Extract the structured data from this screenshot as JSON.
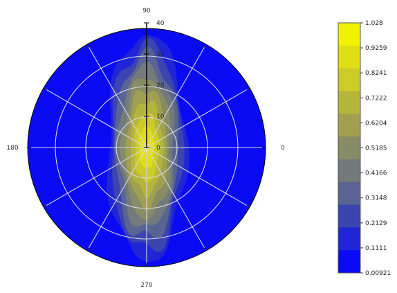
{
  "chart_data": {
    "type": "heatmap",
    "subtype": "polar-contour",
    "angle_labels": [
      "90",
      "180",
      "0",
      "270"
    ],
    "radial_ticks": [
      0,
      10,
      20,
      30,
      40
    ],
    "radial_tick_labels": [
      "0",
      "10",
      "20",
      "30",
      "40"
    ],
    "r_range": [
      0,
      40
    ],
    "angular_grid_step_deg": 30,
    "grid": true,
    "colorbar": {
      "position": "right",
      "min": 0.00921,
      "max": 1.028,
      "tick_labels": [
        "1.028",
        "0.9259",
        "0.8241",
        "0.7222",
        "0.6204",
        "0.5185",
        "0.4166",
        "0.3148",
        "0.2129",
        "0.1111",
        "0.00921"
      ],
      "colors": [
        "#f2f200",
        "#dfdf14",
        "#cccc28",
        "#b5b53c",
        "#a0a050",
        "#888c66",
        "#727a7c",
        "#5a6493",
        "#3c44b0",
        "#2026d6",
        "#0a0af5"
      ]
    },
    "distribution": {
      "shape": "vertical lobe centred at origin",
      "peak_value": 1.028,
      "peak_location": {
        "theta_deg": 0,
        "r": 0
      },
      "background_value": 0.00921,
      "approx_extent": {
        "r_half_value_along_90_270": 15,
        "r_half_value_along_0_180": 6
      }
    },
    "title": "",
    "xlabel": "",
    "ylabel": ""
  }
}
